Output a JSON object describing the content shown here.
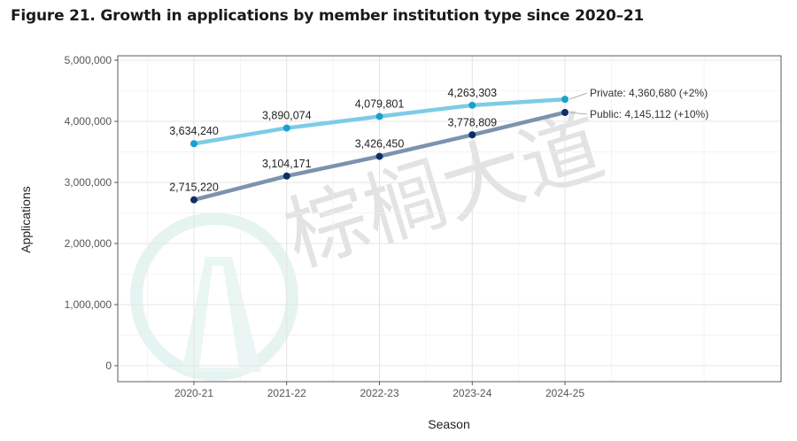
{
  "title": "Figure 21. Growth in applications by member institution type since 2020–21",
  "watermark": {
    "text": "棕榈大道",
    "icon": "road-logo-icon"
  },
  "colors": {
    "private": "#7ccce6",
    "private_marker": "#1aa0cf",
    "public": "#7c93ad",
    "public_marker": "#0e2f66"
  },
  "chart_data": {
    "type": "line",
    "xlabel": "Season",
    "ylabel": "Applications",
    "categories": [
      "2020-21",
      "2021-22",
      "2022-23",
      "2023-24",
      "2024-25"
    ],
    "ylim": [
      0,
      5000000
    ],
    "yticks": [
      0,
      1000000,
      2000000,
      3000000,
      4000000,
      5000000
    ],
    "ytick_labels": [
      "0",
      "1,000,000",
      "2,000,000",
      "3,000,000",
      "4,000,000",
      "5,000,000"
    ],
    "grid": true,
    "series": [
      {
        "name": "Private",
        "values": [
          3634240,
          3890074,
          4079801,
          4263303,
          4360680
        ],
        "point_labels": [
          "3,634,240",
          "3,890,074",
          "4,079,801",
          "4,263,303"
        ],
        "end_label": "Private: 4,360,680 (+2%)"
      },
      {
        "name": "Public",
        "values": [
          2715220,
          3104171,
          3426450,
          3778809,
          4145112
        ],
        "point_labels": [
          "2,715,220",
          "3,104,171",
          "3,426,450",
          "3,778,809"
        ],
        "end_label": "Public: 4,145,112 (+10%)"
      }
    ]
  }
}
